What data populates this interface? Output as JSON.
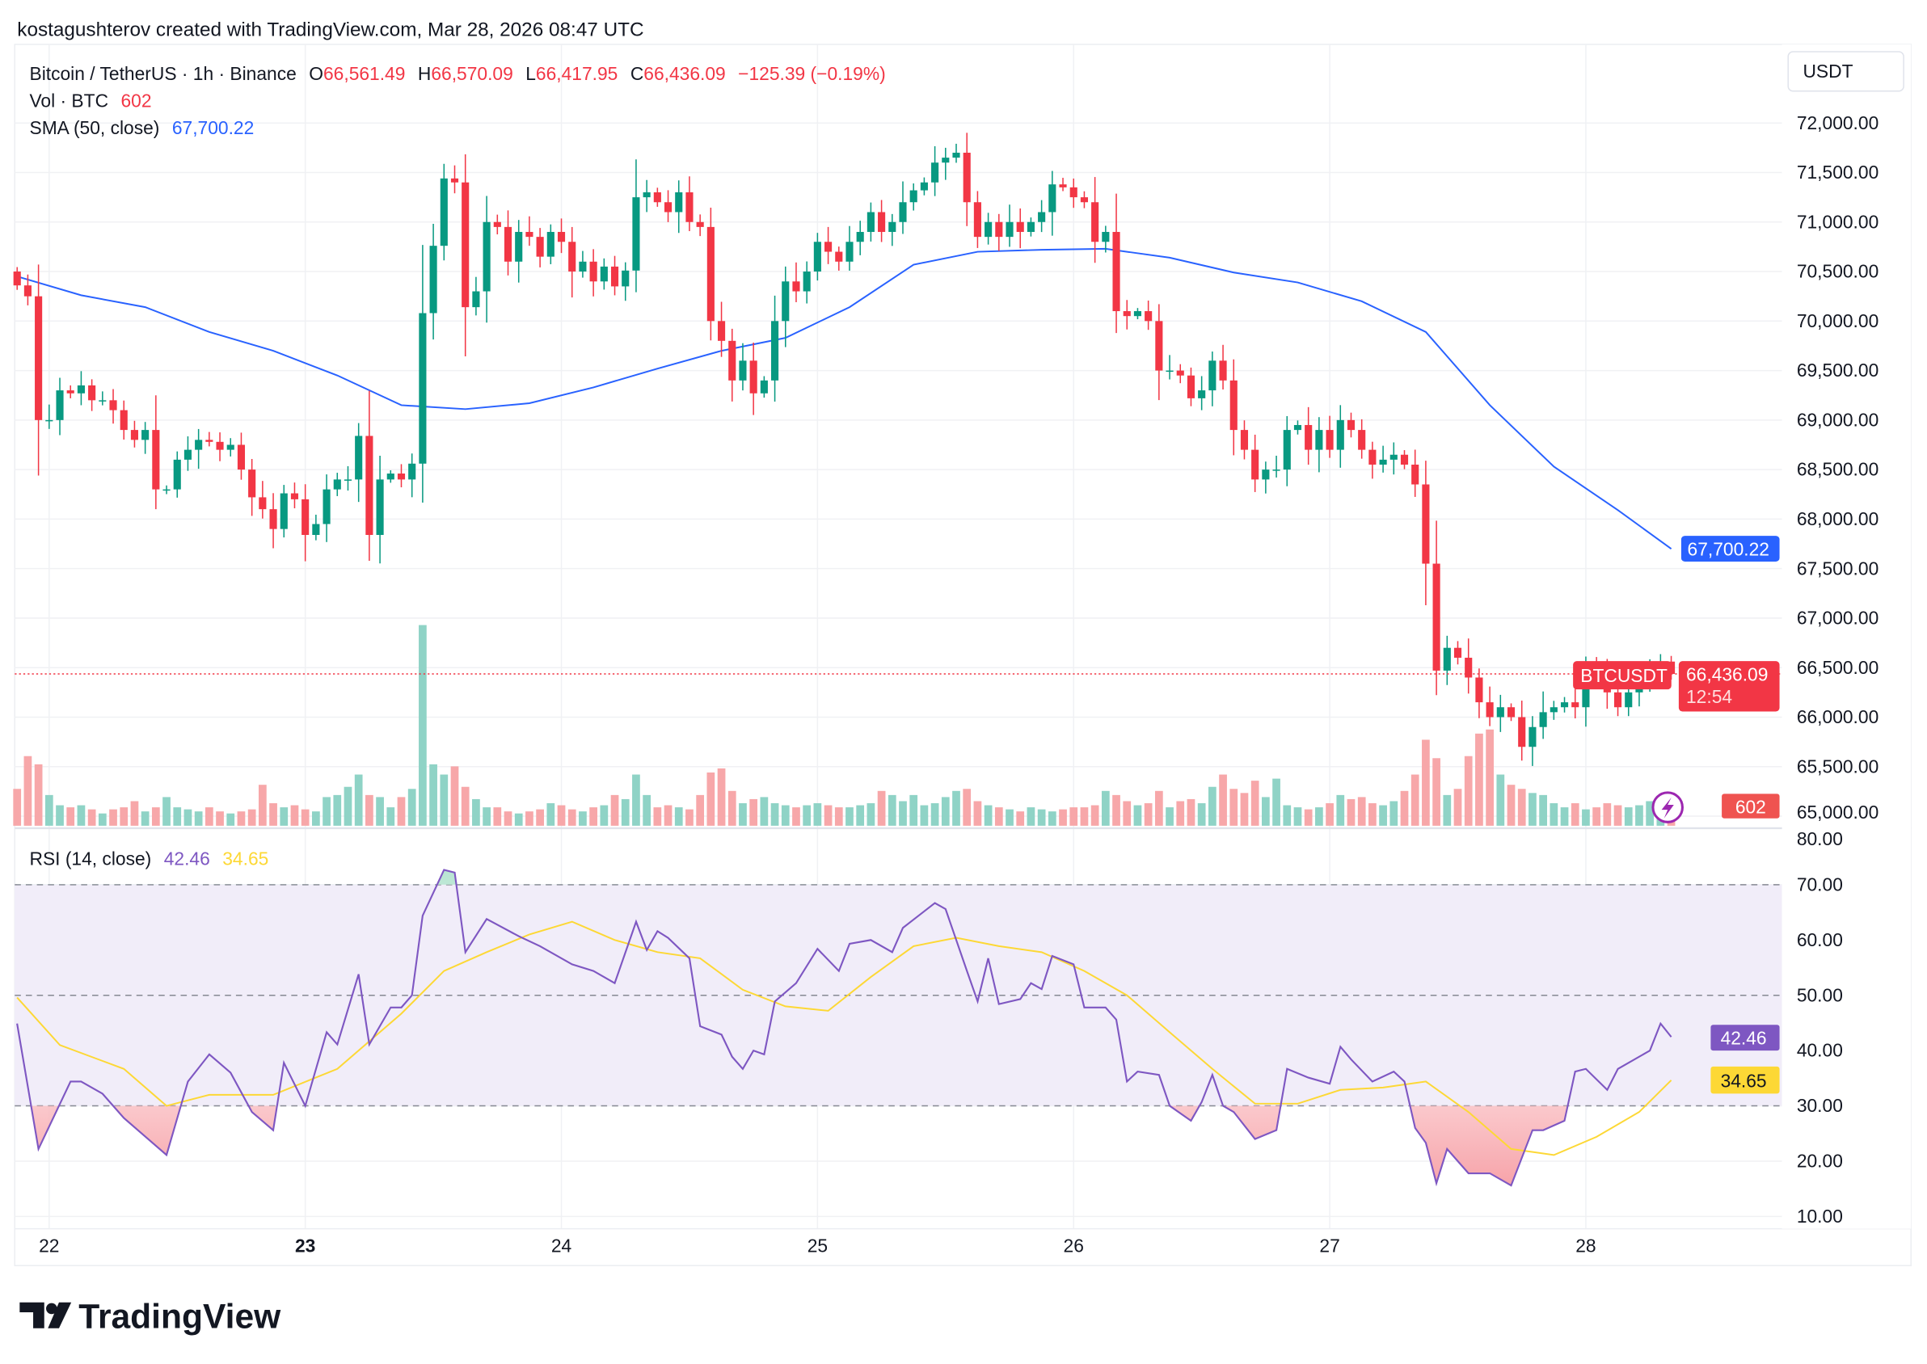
{
  "header": {
    "attribution": "kostagushterov created with TradingView.com, Mar 28, 2026 08:47 UTC"
  },
  "legend": {
    "symbol": "Bitcoin / TetherUS · 1h · Binance",
    "o_label": "O",
    "o": "66,561.49",
    "h_label": "H",
    "h": "66,570.09",
    "l_label": "L",
    "l": "66,417.95",
    "c_label": "C",
    "c": "66,436.09",
    "change": "−125.39 (−0.19%)",
    "vol_label": "Vol · BTC",
    "vol": "602",
    "sma_label": "SMA (50, close)",
    "sma": "67,700.22",
    "rsi_label": "RSI (14, close)",
    "rsi": "42.46",
    "rsi_ma": "34.65"
  },
  "price_axis": {
    "currency": "USDT",
    "ticks": [
      "72,000.00",
      "71,500.00",
      "71,000.00",
      "70,500.00",
      "70,000.00",
      "69,500.00",
      "69,000.00",
      "68,500.00",
      "68,000.00",
      "67,500.00",
      "67,000.00",
      "66,500.00",
      "66,000.00",
      "65,500.00",
      "65,000.00"
    ],
    "sma_tag": "67,700.22",
    "symbol_tag": "BTCUSDT",
    "price_tag": "66,436.09",
    "countdown": "12:54",
    "vol_tag": "602"
  },
  "rsi_axis": {
    "ticks": [
      "80.00",
      "70.00",
      "60.00",
      "50.00",
      "40.00",
      "30.00",
      "20.00",
      "10.00"
    ],
    "rsi_tag": "42.46",
    "ma_tag": "34.65"
  },
  "time_axis": {
    "ticks": [
      "22",
      "23",
      "24",
      "25",
      "26",
      "27",
      "28"
    ],
    "bold": "23"
  },
  "brand": {
    "name": "TradingView"
  },
  "colors": {
    "up": "#089981",
    "down": "#f23645",
    "sma": "#2962ff",
    "rsi": "#7e57c2",
    "rsi_ma": "#fdd835",
    "band": "#f1edf9"
  },
  "icons": {
    "alert": "lightning-icon",
    "logo": "tradingview-logo-icon"
  },
  "chart_data": {
    "type": "candlestick",
    "symbol": "BTCUSDT",
    "interval": "1h",
    "start": "2026-03-21 21:00",
    "ylim": [
      65000,
      72000
    ],
    "closes": [
      70360,
      70250,
      69000,
      69000,
      69300,
      69270,
      69350,
      69200,
      69200,
      69100,
      68900,
      68800,
      68900,
      68300,
      68300,
      68600,
      68700,
      68800,
      68780,
      68700,
      68750,
      68500,
      68220,
      68100,
      67900,
      68260,
      68200,
      67840,
      67950,
      68300,
      68400,
      68400,
      68840,
      67840,
      68400,
      68460,
      68400,
      68560,
      70080,
      70760,
      71440,
      71400,
      70140,
      70300,
      71000,
      70950,
      70600,
      70900,
      70850,
      70650,
      70900,
      70800,
      70500,
      70600,
      70400,
      70550,
      70350,
      70510,
      71250,
      71300,
      71200,
      71100,
      71300,
      71000,
      70950,
      70000,
      69800,
      69400,
      69600,
      69270,
      69400,
      70000,
      70400,
      70300,
      70500,
      70800,
      70700,
      70600,
      70800,
      70900,
      71100,
      70900,
      71000,
      71200,
      71320,
      71400,
      71600,
      71650,
      71700,
      71200,
      70850,
      71000,
      70850,
      71000,
      70900,
      71000,
      71100,
      71380,
      71350,
      71250,
      71200,
      70800,
      70900,
      70100,
      70050,
      70100,
      70000,
      69500,
      69500,
      69450,
      69220,
      69300,
      69600,
      69400,
      68900,
      68700,
      68400,
      68500,
      68500,
      68900,
      68950,
      68700,
      68900,
      68700,
      69000,
      68900,
      68700,
      68550,
      68600,
      68650,
      68550,
      68350,
      67550,
      66470,
      66700,
      66600,
      66400,
      66150,
      66000,
      66100,
      66000,
      65700,
      65900,
      66050,
      66100,
      66150,
      66100,
      66500,
      66450,
      66250,
      66100,
      66250,
      66350,
      66420,
      66561,
      66436.09
    ],
    "volumes": [
      1800,
      3400,
      3000,
      1500,
      1000,
      900,
      1000,
      800,
      600,
      800,
      900,
      1200,
      700,
      900,
      1400,
      900,
      800,
      700,
      900,
      700,
      600,
      700,
      800,
      2000,
      1100,
      900,
      1000,
      800,
      700,
      1400,
      1500,
      1900,
      2500,
      1500,
      1400,
      900,
      1400,
      1800,
      9800,
      3000,
      2500,
      2900,
      1900,
      1300,
      900,
      900,
      700,
      600,
      700,
      800,
      1100,
      1000,
      800,
      700,
      900,
      1000,
      1500,
      1300,
      2500,
      1500,
      900,
      1000,
      900,
      800,
      1500,
      2600,
      2800,
      1700,
      1100,
      1300,
      1400,
      1100,
      1000,
      900,
      1000,
      1100,
      1000,
      900,
      900,
      1000,
      1100,
      1700,
      1500,
      1200,
      1500,
      1000,
      1100,
      1400,
      1700,
      1800,
      1200,
      1000,
      900,
      800,
      700,
      900,
      800,
      700,
      800,
      900,
      900,
      1000,
      1700,
      1500,
      1200,
      1000,
      1100,
      1700,
      900,
      1200,
      1300,
      1100,
      1900,
      2500,
      1800,
      1600,
      2200,
      1400,
      2300,
      1000,
      900,
      800,
      900,
      1100,
      1500,
      1300,
      1400,
      1100,
      1000,
      1200,
      1700,
      2500,
      4200,
      3300,
      1500,
      1800,
      3400,
      4500,
      4700,
      2500,
      2000,
      1800,
      1600,
      1500,
      1100,
      900,
      1100,
      800,
      900,
      1100,
      1000,
      900,
      1000,
      1200,
      900,
      602
    ],
    "sma50": [
      [
        21,
        21,
        70450
      ],
      [
        22,
        3,
        70260
      ],
      [
        22,
        9,
        70140
      ],
      [
        22,
        15,
        69890
      ],
      [
        22,
        21,
        69700
      ],
      [
        23,
        3,
        69450
      ],
      [
        23,
        9,
        69150
      ],
      [
        23,
        15,
        69110
      ],
      [
        23,
        21,
        69170
      ],
      [
        24,
        3,
        69330
      ],
      [
        24,
        9,
        69520
      ],
      [
        24,
        15,
        69700
      ],
      [
        24,
        21,
        69830
      ],
      [
        25,
        3,
        70140
      ],
      [
        25,
        9,
        70570
      ],
      [
        25,
        15,
        70700
      ],
      [
        25,
        21,
        70720
      ],
      [
        26,
        3,
        70730
      ],
      [
        26,
        9,
        70640
      ],
      [
        26,
        15,
        70490
      ],
      [
        26,
        21,
        70390
      ],
      [
        27,
        3,
        70200
      ],
      [
        27,
        9,
        69890
      ],
      [
        27,
        15,
        69150
      ],
      [
        27,
        21,
        68530
      ],
      [
        28,
        3,
        68090
      ],
      [
        28,
        8,
        67700.22
      ]
    ],
    "rsi": [
      [
        21,
        21,
        44.9
      ],
      [
        21,
        23,
        22.2
      ],
      [
        22,
        2,
        34.4
      ],
      [
        22,
        3,
        34.4
      ],
      [
        22,
        5,
        32.2
      ],
      [
        22,
        7,
        27.8
      ],
      [
        22,
        11,
        21.1
      ],
      [
        22,
        13,
        34.4
      ],
      [
        22,
        15,
        39.3
      ],
      [
        22,
        17,
        36
      ],
      [
        22,
        19,
        28.9
      ],
      [
        22,
        21,
        25.6
      ],
      [
        22,
        22,
        37.8
      ],
      [
        23,
        0,
        30
      ],
      [
        23,
        2,
        43.3
      ],
      [
        23,
        3,
        41.1
      ],
      [
        23,
        5,
        53.8
      ],
      [
        23,
        6,
        41.1
      ],
      [
        23,
        8,
        47.8
      ],
      [
        23,
        9,
        47.8
      ],
      [
        23,
        10,
        50
      ],
      [
        23,
        11,
        64.4
      ],
      [
        23,
        13,
        72.7
      ],
      [
        23,
        14,
        72.2
      ],
      [
        23,
        15,
        57.8
      ],
      [
        23,
        17,
        63.8
      ],
      [
        23,
        20,
        60.7
      ],
      [
        23,
        22,
        58.9
      ],
      [
        24,
        1,
        55.6
      ],
      [
        24,
        3,
        54.4
      ],
      [
        24,
        5,
        52.2
      ],
      [
        24,
        7,
        63.3
      ],
      [
        24,
        8,
        58.2
      ],
      [
        24,
        9,
        61.6
      ],
      [
        24,
        10,
        60.4
      ],
      [
        24,
        12,
        56.7
      ],
      [
        24,
        13,
        44.4
      ],
      [
        24,
        15,
        42.9
      ],
      [
        24,
        16,
        38.9
      ],
      [
        24,
        17,
        36.7
      ],
      [
        24,
        18,
        40
      ],
      [
        24,
        19,
        39.3
      ],
      [
        24,
        20,
        48.9
      ],
      [
        24,
        22,
        52.2
      ],
      [
        25,
        0,
        58.4
      ],
      [
        25,
        2,
        54.4
      ],
      [
        25,
        3,
        59.3
      ],
      [
        25,
        5,
        60
      ],
      [
        25,
        7,
        57.8
      ],
      [
        25,
        8,
        62.2
      ],
      [
        25,
        11,
        66.7
      ],
      [
        25,
        12,
        65.6
      ],
      [
        25,
        14,
        54.4
      ],
      [
        25,
        15,
        48.9
      ],
      [
        25,
        16,
        56.7
      ],
      [
        25,
        17,
        48.4
      ],
      [
        25,
        19,
        49.3
      ],
      [
        25,
        20,
        52.2
      ],
      [
        25,
        21,
        51.1
      ],
      [
        25,
        22,
        57.1
      ],
      [
        26,
        0,
        55.6
      ],
      [
        26,
        1,
        47.8
      ],
      [
        26,
        3,
        47.8
      ],
      [
        26,
        4,
        45.6
      ],
      [
        26,
        5,
        34.4
      ],
      [
        26,
        6,
        36.2
      ],
      [
        26,
        8,
        35.6
      ],
      [
        26,
        9,
        30
      ],
      [
        26,
        11,
        27.3
      ],
      [
        26,
        12,
        30.7
      ],
      [
        26,
        13,
        35.6
      ],
      [
        26,
        14,
        30
      ],
      [
        26,
        15,
        28.9
      ],
      [
        26,
        17,
        24
      ],
      [
        26,
        19,
        25.6
      ],
      [
        26,
        20,
        36.7
      ],
      [
        26,
        22,
        35.1
      ],
      [
        27,
        0,
        34
      ],
      [
        27,
        1,
        40.7
      ],
      [
        27,
        2,
        38.4
      ],
      [
        27,
        4,
        34.4
      ],
      [
        27,
        6,
        36.2
      ],
      [
        27,
        7,
        34.4
      ],
      [
        27,
        8,
        26
      ],
      [
        27,
        9,
        23.3
      ],
      [
        27,
        10,
        16
      ],
      [
        27,
        11,
        22.2
      ],
      [
        27,
        13,
        17.8
      ],
      [
        27,
        15,
        17.8
      ],
      [
        27,
        17,
        15.6
      ],
      [
        27,
        19,
        25.6
      ],
      [
        27,
        20,
        25.6
      ],
      [
        27,
        22,
        27.3
      ],
      [
        27,
        23,
        36.2
      ],
      [
        28,
        0,
        36.7
      ],
      [
        28,
        2,
        32.9
      ],
      [
        28,
        3,
        36.7
      ],
      [
        28,
        6,
        40
      ],
      [
        28,
        7,
        44.9
      ],
      [
        28,
        8,
        42.46
      ]
    ],
    "rsi_ma": [
      [
        21,
        21,
        49.6
      ],
      [
        22,
        1,
        41
      ],
      [
        22,
        7,
        36.7
      ],
      [
        22,
        11,
        30
      ],
      [
        22,
        15,
        32
      ],
      [
        22,
        21,
        32
      ],
      [
        23,
        3,
        36.7
      ],
      [
        23,
        9,
        46.7
      ],
      [
        23,
        13,
        54.4
      ],
      [
        23,
        17,
        57.8
      ],
      [
        23,
        21,
        61
      ],
      [
        24,
        1,
        63.3
      ],
      [
        24,
        5,
        60
      ],
      [
        24,
        9,
        57.8
      ],
      [
        24,
        13,
        56.7
      ],
      [
        24,
        17,
        51
      ],
      [
        24,
        21,
        48
      ],
      [
        25,
        1,
        47.2
      ],
      [
        25,
        5,
        53.3
      ],
      [
        25,
        9,
        58.9
      ],
      [
        25,
        13,
        60.4
      ],
      [
        25,
        17,
        58.9
      ],
      [
        25,
        21,
        57.8
      ],
      [
        26,
        1,
        54.4
      ],
      [
        26,
        5,
        50
      ],
      [
        26,
        9,
        43.3
      ],
      [
        26,
        13,
        36.7
      ],
      [
        26,
        17,
        30.4
      ],
      [
        26,
        21,
        30.4
      ],
      [
        27,
        1,
        32.9
      ],
      [
        27,
        5,
        33.3
      ],
      [
        27,
        9,
        34.4
      ],
      [
        27,
        13,
        28.9
      ],
      [
        27,
        17,
        22.2
      ],
      [
        27,
        21,
        21.1
      ],
      [
        28,
        1,
        24.4
      ],
      [
        28,
        5,
        28.9
      ],
      [
        28,
        8,
        34.65
      ]
    ],
    "rsi_levels": [
      70,
      50,
      30
    ],
    "rsi_ylim": [
      10,
      80
    ]
  }
}
